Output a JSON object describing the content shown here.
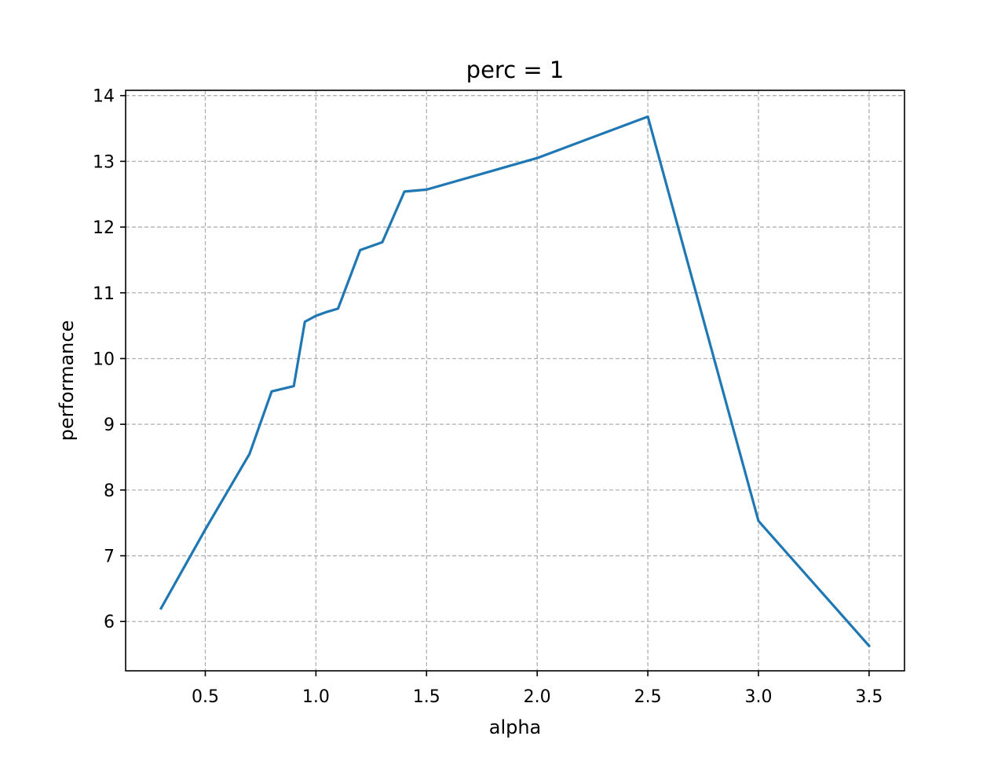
{
  "colors": {
    "line": "#1f77b4",
    "grid": "#b0b0b0",
    "axes": "#000000",
    "background": "#ffffff"
  },
  "chart_data": {
    "type": "line",
    "title": "perc = 1",
    "xlabel": "alpha",
    "ylabel": "performance",
    "xlim": [
      0.14,
      3.66
    ],
    "ylim": [
      5.25,
      14.08
    ],
    "grid": true,
    "legend": "none",
    "xticks": [
      0.5,
      1.0,
      1.5,
      2.0,
      2.5,
      3.0,
      3.5
    ],
    "xtick_labels": [
      "0.5",
      "1.0",
      "1.5",
      "2.0",
      "2.5",
      "3.0",
      "3.5"
    ],
    "yticks": [
      6,
      7,
      8,
      9,
      10,
      11,
      12,
      13,
      14
    ],
    "ytick_labels": [
      "6",
      "7",
      "8",
      "9",
      "10",
      "11",
      "12",
      "13",
      "14"
    ],
    "series": [
      {
        "x": [
          0.3,
          0.5,
          0.7,
          0.8,
          0.9,
          0.95,
          1.0,
          1.05,
          1.1,
          1.2,
          1.3,
          1.4,
          1.5,
          2.0,
          2.5,
          3.0,
          3.5
        ],
        "y": [
          6.2,
          7.4,
          8.55,
          9.5,
          9.58,
          10.56,
          10.65,
          10.71,
          10.76,
          11.65,
          11.77,
          12.54,
          12.57,
          13.05,
          13.68,
          7.53,
          5.63
        ]
      }
    ]
  }
}
